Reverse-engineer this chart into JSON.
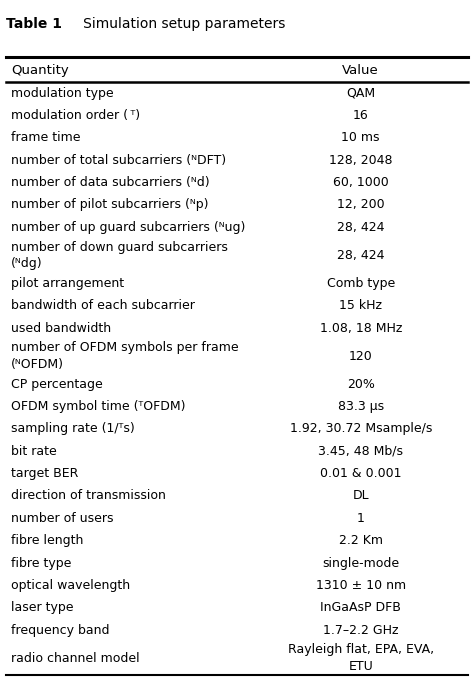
{
  "title_bold": "Table 1",
  "title_normal": "   Simulation setup parameters",
  "col_headers": [
    "Quantity",
    "Value"
  ],
  "rows": [
    [
      "modulation type",
      "QAM"
    ],
    [
      "modulation order ( ᵀ)",
      "16"
    ],
    [
      "frame time",
      "10 ms"
    ],
    [
      "number of total subcarriers (ᴺDFT)",
      "128, 2048"
    ],
    [
      "number of data subcarriers (ᴺd)",
      "60, 1000"
    ],
    [
      "number of pilot subcarriers (ᴺp)",
      "12, 200"
    ],
    [
      "number of up guard subcarriers (ᴺug)",
      "28, 424"
    ],
    [
      "number of down guard subcarriers\n(ᴺdg)",
      "28, 424"
    ],
    [
      "pilot arrangement",
      "Comb type"
    ],
    [
      "bandwidth of each subcarrier",
      "15 kHz"
    ],
    [
      "used bandwidth",
      "1.08, 18 MHz"
    ],
    [
      "number of OFDM symbols per frame\n(ᴺOFDM)",
      "120"
    ],
    [
      "CP percentage",
      "20%"
    ],
    [
      "OFDM symbol time (ᵀOFDM)",
      "83.3 μs"
    ],
    [
      "sampling rate (1/ᵀs)",
      "1.92, 30.72 Msample/s"
    ],
    [
      "bit rate",
      "3.45, 48 Mb/s"
    ],
    [
      "target BER",
      "0.01 & 0.001"
    ],
    [
      "direction of transmission",
      "DL"
    ],
    [
      "number of users",
      "1"
    ],
    [
      "fibre length",
      "2.2 Km"
    ],
    [
      "fibre type",
      "single-mode"
    ],
    [
      "optical wavelength",
      "1310 ± 10 nm"
    ],
    [
      "laser type",
      "InGaAsP DFB"
    ],
    [
      "frequency band",
      "1.7–2.2 GHz"
    ],
    [
      "radio channel model",
      "Rayleigh flat, EPA, EVA,\nETU"
    ]
  ],
  "bg_color": "white",
  "row_heights": [
    1.0,
    1.0,
    1.0,
    1.0,
    1.0,
    1.0,
    1.0,
    1.5,
    1.0,
    1.0,
    1.0,
    1.5,
    1.0,
    1.0,
    1.0,
    1.0,
    1.0,
    1.0,
    1.0,
    1.0,
    1.0,
    1.0,
    1.0,
    1.0,
    1.5
  ],
  "font_size": 9.0,
  "title_font_size": 10.0,
  "col_split": 0.535
}
